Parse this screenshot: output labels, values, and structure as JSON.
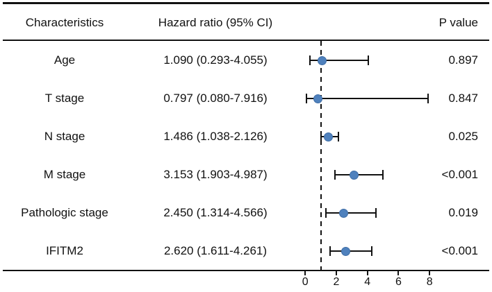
{
  "header": {
    "characteristics": "Characteristics",
    "hazard_ratio": "Hazard ratio (95% CI)",
    "p_value": "P value"
  },
  "chart_data": {
    "type": "forest",
    "title": "",
    "xlabel": "",
    "x_axis": {
      "ticks": [
        0,
        2,
        4,
        6,
        8
      ],
      "range": [
        0,
        11.9
      ],
      "reference_line": 1
    },
    "marker_color": "#4f81bd",
    "line_color": "#111111",
    "rows": [
      {
        "label": "Age",
        "hr": 1.09,
        "ci_low": 0.293,
        "ci_high": 4.055,
        "hr_ci_text": "1.090 (0.293-4.055)",
        "p_value": "0.897"
      },
      {
        "label": "T stage",
        "hr": 0.797,
        "ci_low": 0.08,
        "ci_high": 7.916,
        "hr_ci_text": "0.797 (0.080-7.916)",
        "p_value": "0.847"
      },
      {
        "label": "N stage",
        "hr": 1.486,
        "ci_low": 1.038,
        "ci_high": 2.126,
        "hr_ci_text": "1.486 (1.038-2.126)",
        "p_value": "0.025"
      },
      {
        "label": "M stage",
        "hr": 3.153,
        "ci_low": 1.903,
        "ci_high": 4.987,
        "hr_ci_text": "3.153 (1.903-4.987)",
        "p_value": "<0.001"
      },
      {
        "label": "Pathologic stage",
        "hr": 2.45,
        "ci_low": 1.314,
        "ci_high": 4.566,
        "hr_ci_text": "2.450 (1.314-4.566)",
        "p_value": "0.019"
      },
      {
        "label": "IFITM2",
        "hr": 2.62,
        "ci_low": 1.611,
        "ci_high": 4.261,
        "hr_ci_text": "2.620 (1.611-4.261)",
        "p_value": "<0.001"
      }
    ]
  }
}
